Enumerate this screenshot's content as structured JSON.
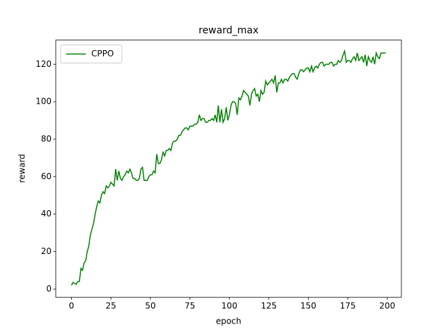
{
  "chart_data": {
    "type": "line",
    "title": "reward_max",
    "xlabel": "epoch",
    "ylabel": "reward",
    "x": [
      0,
      1,
      2,
      3,
      4,
      5,
      6,
      7,
      8,
      9,
      10,
      11,
      12,
      13,
      14,
      15,
      16,
      17,
      18,
      19,
      20,
      21,
      22,
      23,
      24,
      25,
      26,
      27,
      28,
      29,
      30,
      31,
      32,
      33,
      34,
      35,
      36,
      37,
      38,
      39,
      40,
      41,
      42,
      43,
      44,
      45,
      46,
      47,
      48,
      49,
      50,
      51,
      52,
      53,
      54,
      55,
      56,
      57,
      58,
      59,
      60,
      61,
      62,
      63,
      64,
      65,
      66,
      67,
      68,
      69,
      70,
      71,
      72,
      73,
      74,
      75,
      76,
      77,
      78,
      79,
      80,
      81,
      82,
      83,
      84,
      85,
      86,
      87,
      88,
      89,
      90,
      91,
      92,
      93,
      94,
      95,
      96,
      97,
      98,
      99,
      100,
      101,
      102,
      103,
      104,
      105,
      106,
      107,
      108,
      109,
      110,
      111,
      112,
      113,
      114,
      115,
      116,
      117,
      118,
      119,
      120,
      121,
      122,
      123,
      124,
      125,
      126,
      127,
      128,
      129,
      130,
      131,
      132,
      133,
      134,
      135,
      136,
      137,
      138,
      139,
      140,
      141,
      142,
      143,
      144,
      145,
      146,
      147,
      148,
      149,
      150,
      151,
      152,
      153,
      154,
      155,
      156,
      157,
      158,
      159,
      160,
      161,
      162,
      163,
      164,
      165,
      166,
      167,
      168,
      169,
      170,
      171,
      172,
      173,
      174,
      175,
      176,
      177,
      178,
      179,
      180,
      181,
      182,
      183,
      184,
      185,
      186,
      187,
      188,
      189,
      190,
      191,
      192,
      193,
      194,
      195,
      196,
      197,
      198,
      199
    ],
    "series": [
      {
        "name": "CPPO",
        "color": "#008000",
        "values": [
          2,
          3.5,
          3,
          2.5,
          4,
          4,
          11,
          10,
          14,
          15,
          20,
          23,
          29,
          32,
          35,
          40,
          44,
          47,
          46,
          50,
          52,
          51,
          55,
          54,
          55,
          57,
          56,
          55,
          64,
          58,
          63,
          59,
          58,
          60,
          61,
          63,
          62,
          64,
          62,
          59,
          59,
          58,
          58,
          59,
          64,
          65,
          58,
          58,
          58,
          60,
          61,
          61,
          63,
          62,
          72,
          67,
          67,
          69,
          73,
          71,
          74,
          74,
          75,
          74,
          78,
          79,
          79,
          80,
          82,
          82,
          84,
          85,
          86,
          86,
          85,
          87,
          87,
          87,
          88,
          88,
          89,
          93,
          90,
          91,
          91,
          89,
          89,
          90,
          90,
          91,
          90,
          93,
          89,
          98,
          89,
          96,
          89,
          91,
          97,
          90,
          93,
          98,
          100,
          100,
          99,
          93,
          102,
          101,
          103,
          106,
          105,
          104,
          103,
          98,
          104,
          106,
          107,
          103,
          104,
          100,
          106,
          104,
          105,
          111,
          109,
          110,
          111,
          112,
          110,
          114,
          105,
          110,
          110,
          112,
          110,
          112,
          112,
          111,
          113,
          114,
          115,
          115,
          113,
          112,
          115,
          117,
          117,
          116,
          117,
          118,
          118,
          116,
          119,
          116,
          118,
          119,
          118,
          120,
          121,
          121,
          119,
          120,
          120,
          120,
          121,
          121,
          119,
          120,
          120,
          122,
          121,
          122,
          125,
          127,
          121,
          122,
          122,
          121,
          123,
          124,
          122,
          126,
          122,
          123,
          124,
          121,
          125,
          119,
          124,
          122,
          121,
          124,
          120,
          126,
          124,
          123,
          126,
          126,
          126,
          126
        ]
      }
    ],
    "xlim": [
      -9.95,
      208.95
    ],
    "ylim": [
      -4.4,
      132.9
    ],
    "xticks": [
      0,
      25,
      50,
      75,
      100,
      125,
      150,
      175,
      200
    ],
    "yticks": [
      0,
      20,
      40,
      60,
      80,
      100,
      120
    ],
    "legend": "upper left"
  }
}
